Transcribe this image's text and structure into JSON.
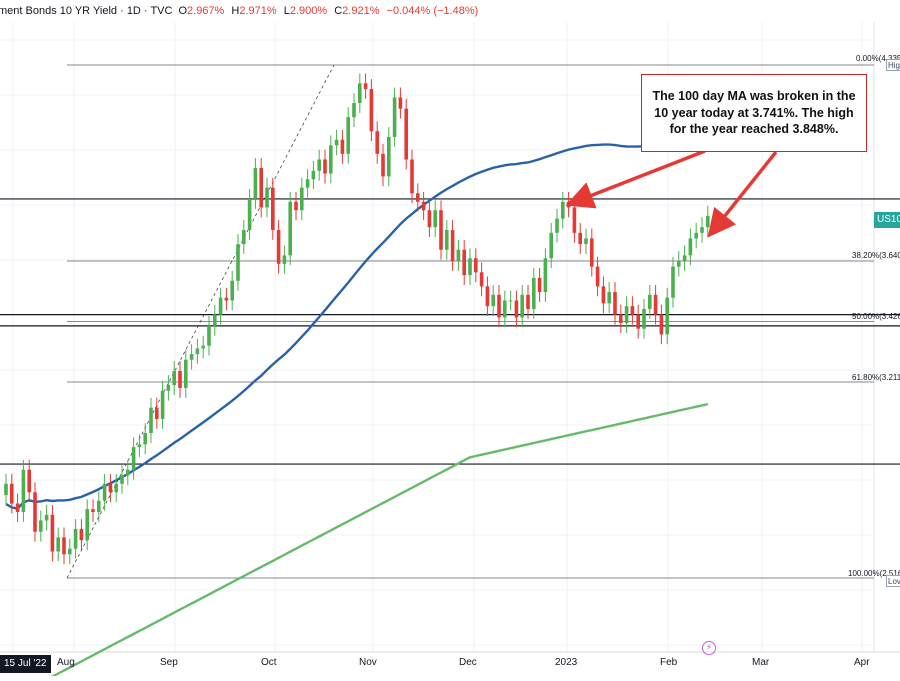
{
  "header": {
    "title": "ment Bonds 10 YR Yield · 1D · TVC",
    "ohlc": [
      {
        "k": "O",
        "v": "2.967%"
      },
      {
        "k": "H",
        "v": "2.971%"
      },
      {
        "k": "L",
        "v": "2.900%"
      },
      {
        "k": "C",
        "v": "2.921%"
      },
      {
        "k": "",
        "v": "−0.044% (−1.48%)"
      }
    ]
  },
  "annotation": {
    "text": "The 100 day MA was broken in the 10 year today at 3.741%. The high for the year reached 3.848%."
  },
  "price_tag": "US10",
  "fib_levels": [
    {
      "label": "0.00%(4.335",
      "tag": "Hig"
    },
    {
      "label": "38.20%(3.640",
      "tag": ""
    },
    {
      "label": "50.00%(3.426",
      "tag": ""
    },
    {
      "label": "61.80%(3.211",
      "tag": ""
    },
    {
      "label": "100.00%(2.516",
      "tag": "Lov"
    }
  ],
  "xaxis": {
    "date_badge": "15 Jul '22",
    "labels": [
      "Aug",
      "Sep",
      "Oct",
      "Nov",
      "Dec",
      "2023",
      "Feb",
      "Mar",
      "Apr"
    ]
  },
  "event_icon": "lightning-icon",
  "colors": {
    "up": "#4caf50",
    "down": "#e53935",
    "ma100": "#2962a8",
    "ma200": "#66bb6a",
    "annotation_border": "#c62828",
    "price_tag": "#26a69a"
  },
  "chart_data": {
    "type": "candlestick",
    "series": [
      {
        "name": "US10",
        "type": "candlestick",
        "values_close": [
          2.85,
          2.78,
          2.75,
          2.9,
          2.82,
          2.68,
          2.72,
          2.74,
          2.61,
          2.66,
          2.6,
          2.62,
          2.69,
          2.65,
          2.76,
          2.75,
          2.79,
          2.85,
          2.82,
          2.85,
          2.88,
          2.9,
          2.98,
          2.99,
          3.03,
          3.12,
          3.08,
          3.18,
          3.2,
          3.25,
          3.19,
          3.29,
          3.31,
          3.33,
          3.34,
          3.41,
          3.45,
          3.51,
          3.5,
          3.57,
          3.7,
          3.75,
          3.86,
          3.97,
          3.83,
          3.9,
          3.75,
          3.63,
          3.66,
          3.85,
          3.82,
          3.9,
          3.93,
          3.96,
          4.0,
          3.95,
          4.05,
          4.07,
          4.02,
          4.15,
          4.2,
          4.27,
          4.25,
          4.1,
          4.02,
          3.94,
          4.08,
          4.22,
          4.18,
          4.0,
          3.88,
          3.85,
          3.82,
          3.76,
          3.82,
          3.68,
          3.75,
          3.64,
          3.68,
          3.59,
          3.65,
          3.6,
          3.55,
          3.48,
          3.52,
          3.44,
          3.5,
          3.5,
          3.44,
          3.52,
          3.47,
          3.58,
          3.53,
          3.65,
          3.74,
          3.79,
          3.85,
          3.83,
          3.74,
          3.7,
          3.72,
          3.62,
          3.55,
          3.49,
          3.53,
          3.45,
          3.42,
          3.48,
          3.45,
          3.4,
          3.47,
          3.52,
          3.45,
          3.38,
          3.51,
          3.62,
          3.64,
          3.66,
          3.72,
          3.74,
          3.76,
          3.8
        ]
      },
      {
        "name": "100 day MA",
        "type": "line"
      },
      {
        "name": "200 day MA",
        "type": "line"
      }
    ],
    "annotations": [
      "The 100 day MA was broken in the 10 year today at 3.741%. The high for the year reached 3.848%."
    ],
    "fibonacci": [
      {
        "level": "0.00%",
        "value": 4.335
      },
      {
        "level": "38.20%",
        "value": 3.64
      },
      {
        "level": "50.00%",
        "value": 3.426
      },
      {
        "level": "61.80%",
        "value": 3.211
      },
      {
        "level": "100.00%",
        "value": 2.516
      }
    ],
    "x_labels": [
      "Aug",
      "Sep",
      "Oct",
      "Nov",
      "Dec",
      "2023",
      "Feb",
      "Mar",
      "Apr"
    ],
    "legend": "none",
    "grid": true
  }
}
